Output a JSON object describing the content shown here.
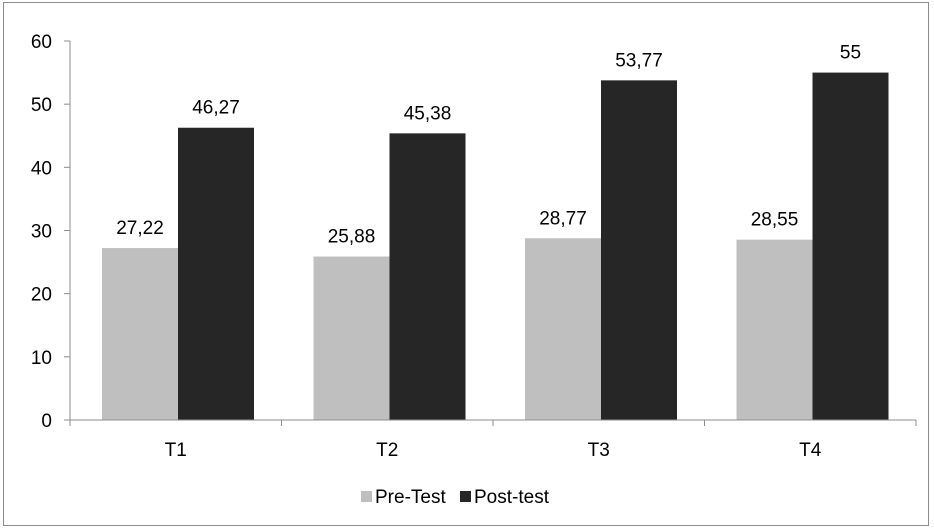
{
  "chart_data": {
    "type": "bar",
    "categories": [
      "T1",
      "T2",
      "T3",
      "T4"
    ],
    "series": [
      {
        "name": "Pre-Test",
        "values": [
          27.22,
          25.88,
          28.77,
          28.55
        ],
        "labels": [
          "27,22",
          "25,88",
          "28,77",
          "28,55"
        ],
        "color": "#bfbfbf"
      },
      {
        "name": "Post-test",
        "values": [
          46.27,
          45.38,
          53.77,
          55
        ],
        "labels": [
          "46,27",
          "45,38",
          "53,77",
          "55"
        ],
        "color": "#262626"
      }
    ],
    "ylim": [
      0,
      60
    ],
    "yticks": [
      "0",
      "10",
      "20",
      "30",
      "40",
      "50",
      "60"
    ],
    "grid": false,
    "legend": "bottom"
  }
}
